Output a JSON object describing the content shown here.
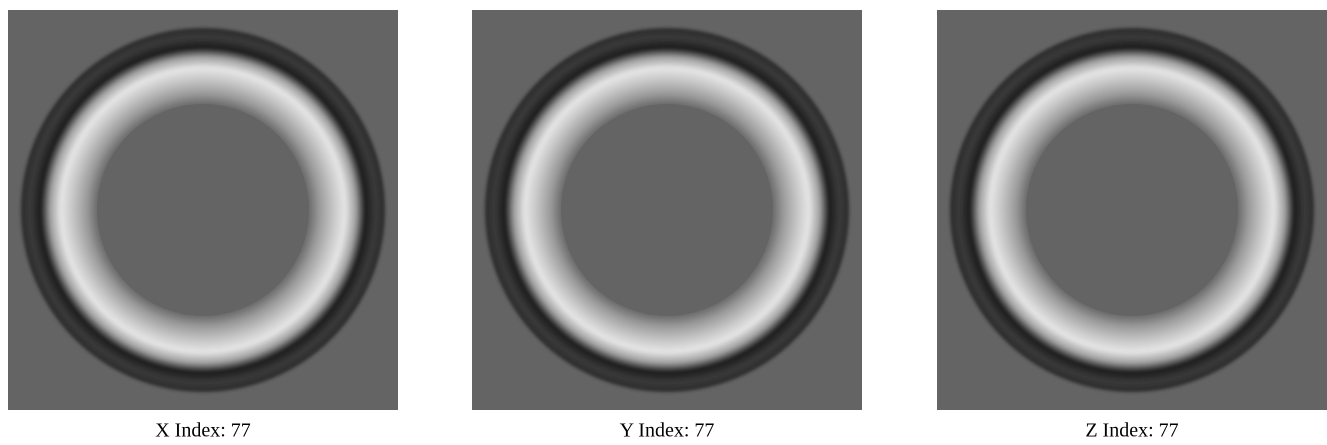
{
  "panels": [
    {
      "caption": "X Index: 77"
    },
    {
      "caption": "Y Index: 77"
    },
    {
      "caption": "Z Index: 77"
    }
  ]
}
